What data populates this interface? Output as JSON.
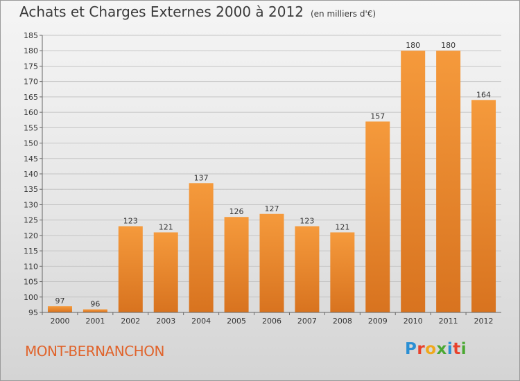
{
  "title": "Achats et Charges Externes 2000 à 2012",
  "unit": "(en milliers d'€)",
  "commune": "MONT-BERNANCHON",
  "logo": {
    "letters": [
      {
        "ch": "P",
        "color": "#2a8fd4"
      },
      {
        "ch": "r",
        "color": "#e8412b"
      },
      {
        "ch": "o",
        "color": "#f0a81c"
      },
      {
        "ch": "x",
        "color": "#4aa832"
      },
      {
        "ch": "i",
        "color": "#2a8fd4"
      },
      {
        "ch": "t",
        "color": "#e8412b"
      },
      {
        "ch": "i",
        "color": "#4aa832"
      }
    ]
  },
  "chart_data": {
    "type": "bar",
    "title": "Achats et Charges Externes 2000 à 2012",
    "subtitle": "(en milliers d'€)",
    "categories": [
      "2000",
      "2001",
      "2002",
      "2003",
      "2004",
      "2005",
      "2006",
      "2007",
      "2008",
      "2009",
      "2010",
      "2011",
      "2012"
    ],
    "values": [
      97,
      96,
      123,
      121,
      137,
      126,
      127,
      123,
      121,
      157,
      180,
      180,
      164
    ],
    "ylim": [
      95,
      185
    ],
    "yticks": [
      95,
      100,
      105,
      110,
      115,
      120,
      125,
      130,
      135,
      140,
      145,
      150,
      155,
      160,
      165,
      170,
      175,
      180,
      185
    ],
    "grid": true,
    "bar_color": "#f59a3c",
    "bar_color_dark": "#d8731f"
  }
}
